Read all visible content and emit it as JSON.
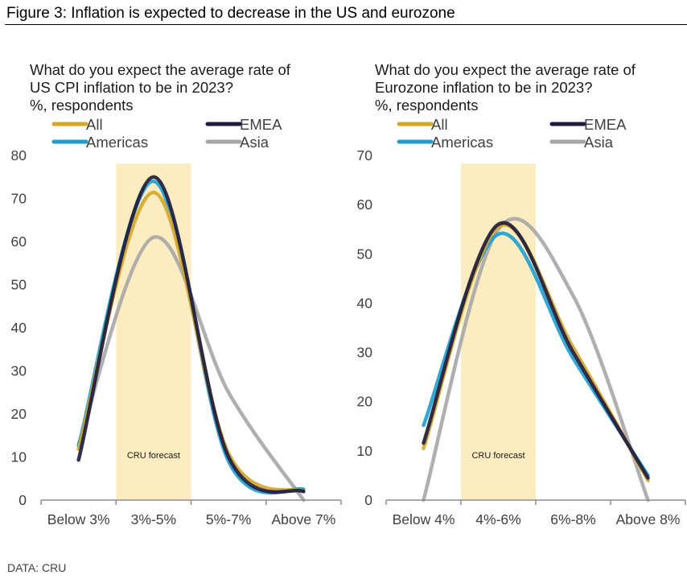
{
  "figure": {
    "title": "Figure 3: Inflation is expected to decrease in the US and eurozone",
    "source": "DATA: CRU"
  },
  "series_colors": {
    "All": "#D4A62A",
    "EMEA": "#1E1A3C",
    "Americas": "#1E9FD0",
    "Asia": "#A6A6A6"
  },
  "band_color": "#FCEDC0",
  "chart_data": [
    {
      "type": "line",
      "title_lines": [
        "What do you expect the average rate of",
        "US CPI inflation to be in 2023?",
        "%, respondents"
      ],
      "xlabel": "",
      "ylabel": "%, respondents",
      "categories": [
        "Below 3%",
        "3%-5%",
        "5%-7%",
        "Above 7%"
      ],
      "ylim": [
        0,
        80
      ],
      "yticks": [
        0,
        10,
        20,
        30,
        40,
        50,
        60,
        70,
        80
      ],
      "grid": false,
      "legend": [
        "All",
        "EMEA",
        "Americas",
        "Asia"
      ],
      "legend_position": "top",
      "annotation": {
        "text": "CRU forecast",
        "category": "3%-5%"
      },
      "series": [
        {
          "name": "All",
          "values": [
            11.8,
            71.4,
            10.8,
            2
          ]
        },
        {
          "name": "EMEA",
          "values": [
            9.3,
            75,
            10,
            2
          ]
        },
        {
          "name": "Americas",
          "values": [
            12.5,
            74,
            9,
            2.5
          ]
        },
        {
          "name": "Asia",
          "values": [
            13,
            61,
            25,
            0
          ]
        }
      ]
    },
    {
      "type": "line",
      "title_lines": [
        "What do you expect the average rate of",
        "Eurozone inflation to be in 2023?",
        "%, respondents"
      ],
      "xlabel": "",
      "ylabel": "%, respondents",
      "categories": [
        "Below 4%",
        "4%-6%",
        "6%-8%",
        "Above 8%"
      ],
      "ylim": [
        0,
        70
      ],
      "yticks": [
        0,
        10,
        20,
        30,
        40,
        50,
        60,
        70
      ],
      "grid": false,
      "legend": [
        "All",
        "EMEA",
        "Americas",
        "Asia"
      ],
      "legend_position": "top",
      "annotation": {
        "text": "CRU forecast",
        "category": "4%-6%"
      },
      "series": [
        {
          "name": "All",
          "values": [
            10.5,
            55.5,
            31,
            4
          ]
        },
        {
          "name": "EMEA",
          "values": [
            11.6,
            56,
            30,
            4.5
          ]
        },
        {
          "name": "Americas",
          "values": [
            15.2,
            54,
            28.8,
            5
          ]
        },
        {
          "name": "Asia",
          "values": [
            0,
            55,
            41.5,
            0
          ]
        }
      ]
    }
  ]
}
